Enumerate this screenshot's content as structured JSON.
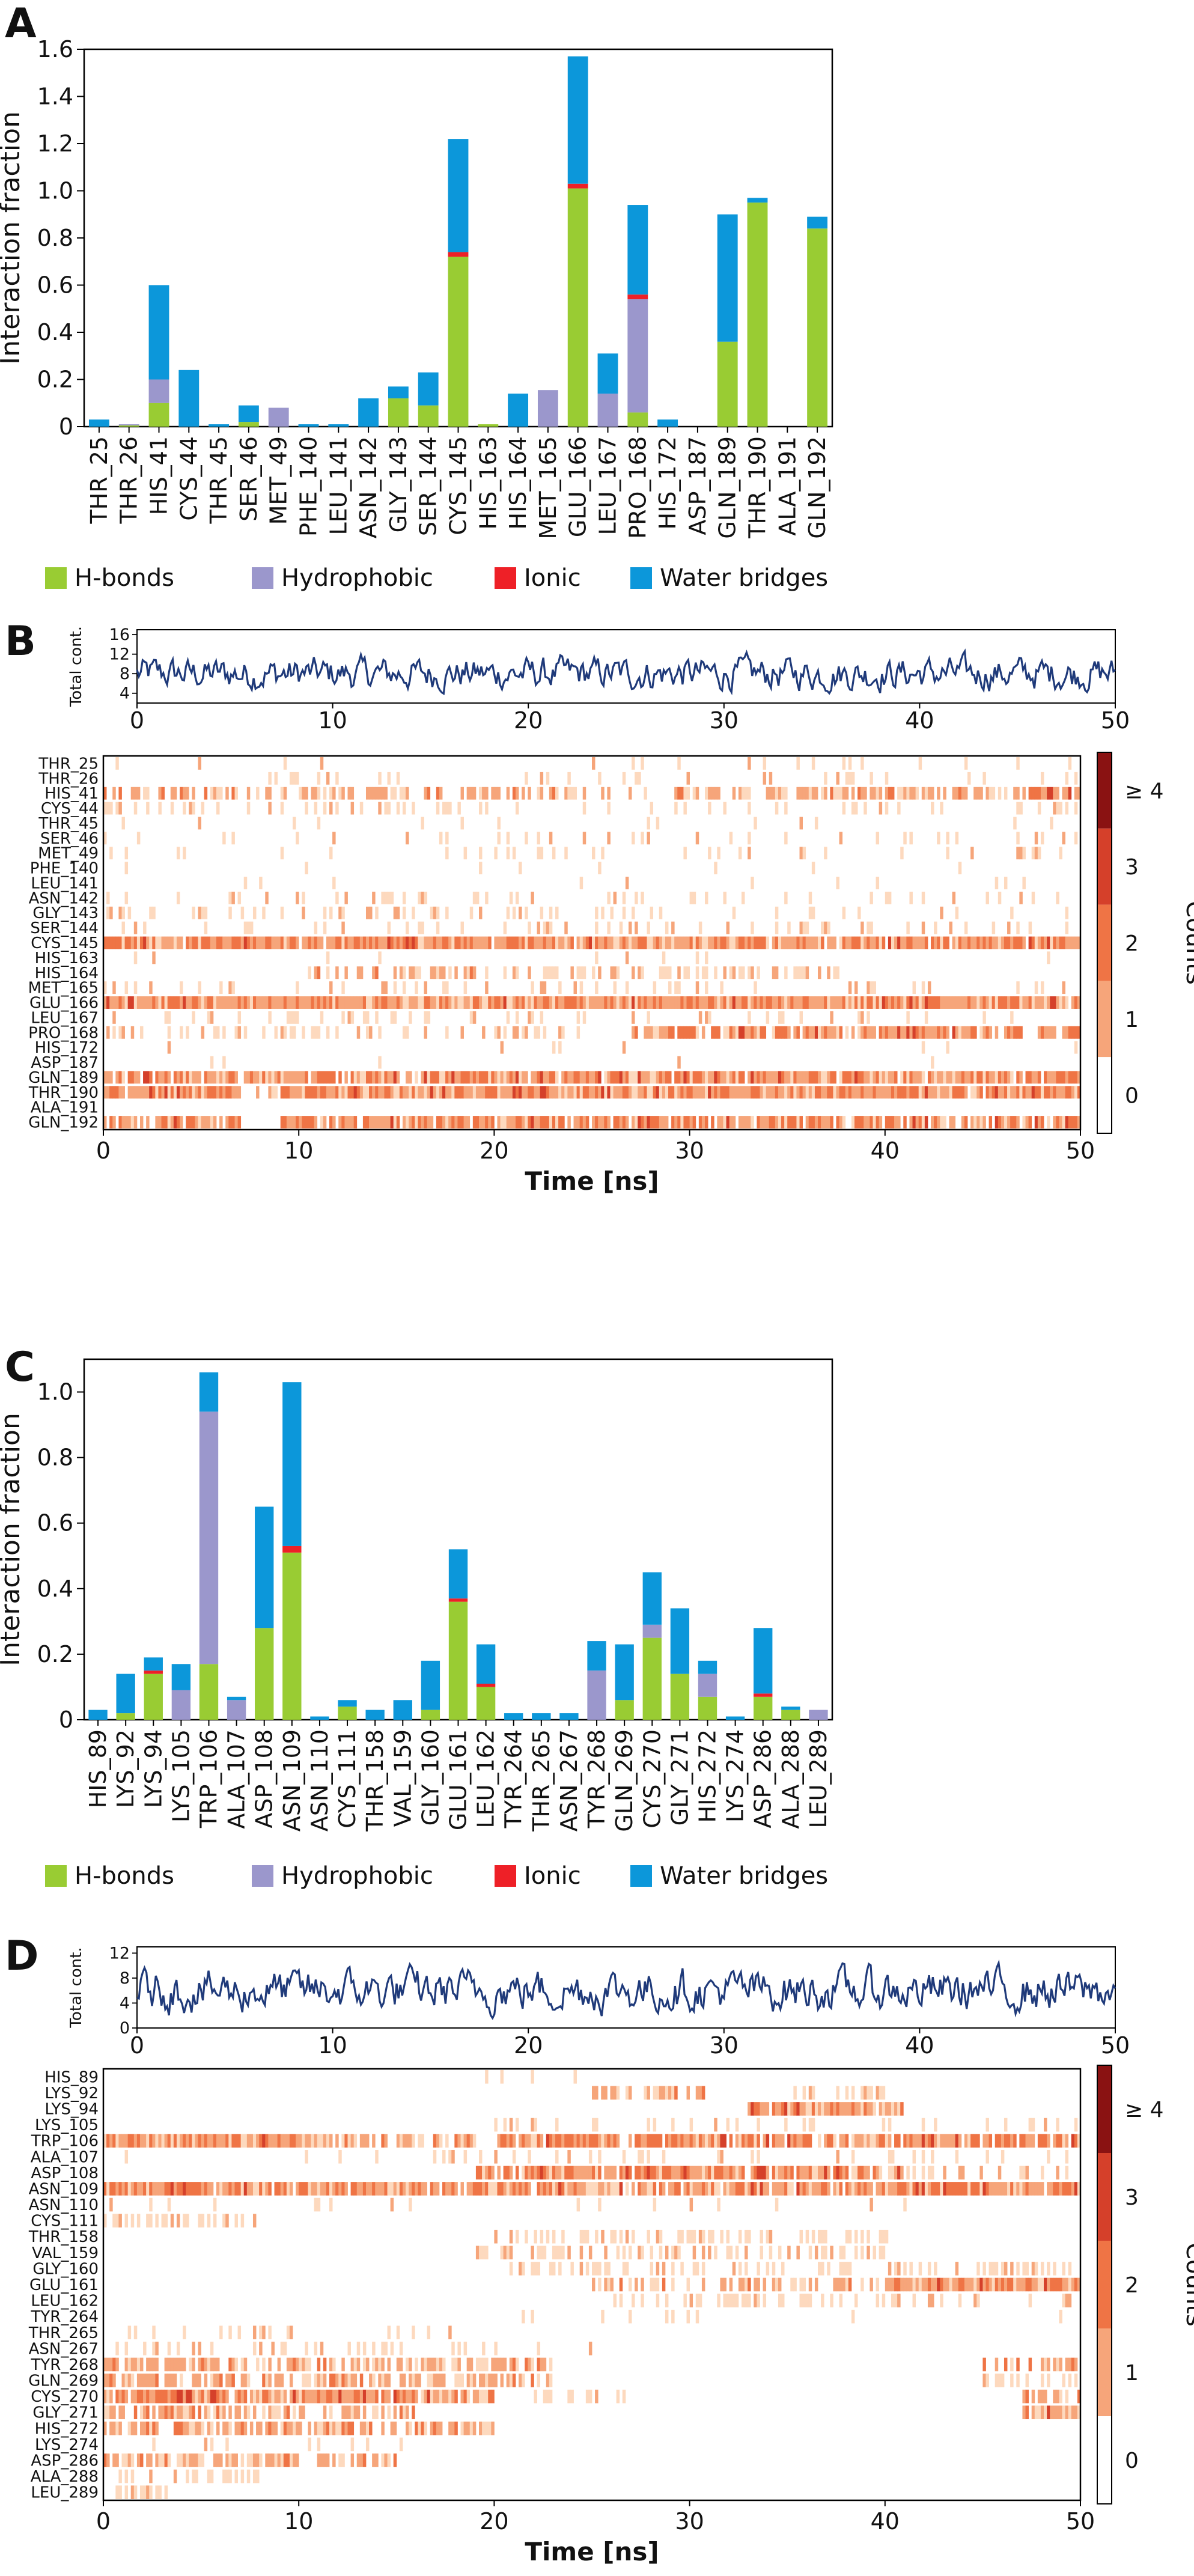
{
  "colors": {
    "hbond": "#99CC33",
    "hydrophobic": "#9B97CC",
    "ionic": "#EE2027",
    "water": "#0C97DA",
    "trace": "#1F3A7A",
    "heat": [
      "#FFFFFF",
      "#FDD9BE",
      "#F6A57A",
      "#EF7445",
      "#D5402A",
      "#8A1212"
    ]
  },
  "panels": {
    "A": {
      "letter": "A"
    },
    "B": {
      "letter": "B"
    },
    "C": {
      "letter": "C"
    },
    "D": {
      "letter": "D"
    }
  },
  "legend": {
    "hbond": "H-bonds",
    "hydrophobic": "Hydrophobic",
    "ionic": "Ionic",
    "water": "Water bridges"
  },
  "chart_data": [
    {
      "panel": "A",
      "type": "bar",
      "stacked": true,
      "ylabel": "Interaction fraction",
      "ylim": [
        0,
        1.6
      ],
      "yticks": [
        "0",
        "0.2",
        "0.4",
        "0.6",
        "0.8",
        "1.0",
        "1.2",
        "1.4",
        "1.6"
      ],
      "categories": [
        "THR_25",
        "THR_26",
        "HIS_41",
        "CYS_44",
        "THR_45",
        "SER_46",
        "MET_49",
        "PHE_140",
        "LEU_141",
        "ASN_142",
        "GLY_143",
        "SER_144",
        "CYS_145",
        "HIS_163",
        "HIS_164",
        "MET_165",
        "GLU_166",
        "LEU_167",
        "PRO_168",
        "HIS_172",
        "ASP_187",
        "GLN_189",
        "THR_190",
        "ALA_191",
        "GLN_192"
      ],
      "series": [
        {
          "name": "H-bonds",
          "values": [
            0,
            0.005,
            0.1,
            0,
            0,
            0.02,
            0,
            0,
            0,
            0,
            0.12,
            0.09,
            0.72,
            0.01,
            0,
            0,
            1.01,
            0,
            0.06,
            0,
            0,
            0.36,
            0.95,
            0,
            0.84
          ]
        },
        {
          "name": "Hydrophobic",
          "values": [
            0,
            0.005,
            0.1,
            0,
            0,
            0,
            0.08,
            0,
            0,
            0,
            0,
            0,
            0,
            0,
            0,
            0.155,
            0,
            0.14,
            0.48,
            0,
            0,
            0,
            0,
            0,
            0
          ]
        },
        {
          "name": "Ionic",
          "values": [
            0,
            0,
            0,
            0,
            0,
            0,
            0,
            0,
            0,
            0,
            0,
            0,
            0.02,
            0,
            0,
            0,
            0.02,
            0,
            0.02,
            0,
            0,
            0,
            0,
            0,
            0
          ]
        },
        {
          "name": "Water bridges",
          "values": [
            0.03,
            0,
            0.4,
            0.24,
            0.01,
            0.07,
            0,
            0.01,
            0.01,
            0.12,
            0.05,
            0.14,
            0.48,
            0,
            0.14,
            0,
            0.54,
            0.17,
            0.38,
            0.03,
            0,
            0.54,
            0.02,
            0,
            0.05
          ]
        }
      ]
    },
    {
      "panel": "B",
      "type": "heatmap",
      "trace": {
        "ylabel": "Total cont.",
        "yticks": [
          "4",
          "8",
          "12",
          "16"
        ],
        "ylim": [
          2,
          17
        ],
        "mean": 8,
        "amp": 2.6
      },
      "xlabel": "Time [ns]",
      "xlim": [
        0,
        50
      ],
      "xticks": [
        "0",
        "10",
        "20",
        "30",
        "40",
        "50"
      ],
      "colorbar_label": "Counts",
      "colorbar_ticks": [
        "0",
        "1",
        "2",
        "3",
        "≥ 4"
      ],
      "rows": [
        "THR_25",
        "THR_26",
        "HIS_41",
        "CYS_44",
        "THR_45",
        "SER_46",
        "MET_49",
        "PHE_140",
        "LEU_141",
        "ASN_142",
        "GLY_143",
        "SER_144",
        "CYS_145",
        "HIS_163",
        "HIS_164",
        "MET_165",
        "GLU_166",
        "LEU_167",
        "PRO_168",
        "HIS_172",
        "ASP_187",
        "GLN_189",
        "THR_190",
        "ALA_191",
        "GLN_192"
      ],
      "occupancy": [
        [
          [
            0,
            50,
            0.05
          ]
        ],
        [
          [
            8,
            16,
            0.2
          ],
          [
            20,
            50,
            0.1
          ]
        ],
        [
          [
            0,
            28,
            0.5
          ],
          [
            29,
            48,
            0.7
          ],
          [
            47,
            50,
            0.9
          ]
        ],
        [
          [
            0,
            20,
            0.25
          ],
          [
            20,
            50,
            0.15
          ]
        ],
        [
          [
            0,
            50,
            0.04
          ]
        ],
        [
          [
            0,
            50,
            0.12
          ]
        ],
        [
          [
            0,
            50,
            0.1
          ]
        ],
        [
          [
            0,
            50,
            0.04
          ]
        ],
        [
          [
            0,
            50,
            0.05
          ]
        ],
        [
          [
            0,
            50,
            0.14
          ]
        ],
        [
          [
            0,
            28,
            0.22
          ],
          [
            28,
            50,
            0.08
          ]
        ],
        [
          [
            0,
            50,
            0.15
          ]
        ],
        [
          [
            0,
            50,
            0.98
          ]
        ],
        [
          [
            0,
            50,
            0.02
          ]
        ],
        [
          [
            10,
            20,
            0.5
          ],
          [
            20,
            38,
            0.35
          ]
        ],
        [
          [
            0,
            50,
            0.16
          ]
        ],
        [
          [
            0,
            50,
            0.99
          ]
        ],
        [
          [
            0,
            50,
            0.2
          ]
        ],
        [
          [
            0,
            10,
            0.4
          ],
          [
            10,
            26,
            0.3
          ],
          [
            27,
            50,
            0.85
          ]
        ],
        [
          [
            0,
            50,
            0.03
          ]
        ],
        [
          [
            0,
            50,
            0.01
          ]
        ],
        [
          [
            0,
            50,
            0.92
          ]
        ],
        [
          [
            0,
            7,
            0.98
          ],
          [
            7,
            9,
            0.4
          ],
          [
            9,
            50,
            0.98
          ]
        ],
        [
          [
            0,
            50,
            0.0
          ]
        ],
        [
          [
            0,
            7,
            0.85
          ],
          [
            9,
            50,
            0.85
          ]
        ]
      ]
    },
    {
      "panel": "C",
      "type": "bar",
      "stacked": true,
      "ylabel": "Interaction fraction",
      "ylim": [
        0,
        1.1
      ],
      "yticks": [
        "0",
        "0.2",
        "0.4",
        "0.6",
        "0.8",
        "1.0"
      ],
      "categories": [
        "HIS_89",
        "LYS_92",
        "LYS_94",
        "LYS_105",
        "TRP_106",
        "ALA_107",
        "ASP_108",
        "ASN_109",
        "ASN_110",
        "CYS_111",
        "THR_158",
        "VAL_159",
        "GLY_160",
        "GLU_161",
        "LEU_162",
        "TYR_264",
        "THR_265",
        "ASN_267",
        "TYR_268",
        "GLN_269",
        "CYS_270",
        "GLY_271",
        "HIS_272",
        "LYS_274",
        "ASP_286",
        "ALA_288",
        "LEU_289"
      ],
      "series": [
        {
          "name": "H-bonds",
          "values": [
            0,
            0.02,
            0.14,
            0,
            0.17,
            0,
            0.28,
            0.51,
            0,
            0.04,
            0,
            0,
            0.03,
            0.36,
            0.1,
            0,
            0,
            0,
            0,
            0.06,
            0.25,
            0.14,
            0.07,
            0,
            0.07,
            0.03,
            0
          ]
        },
        {
          "name": "Hydrophobic",
          "values": [
            0,
            0,
            0,
            0.09,
            0.77,
            0.06,
            0,
            0,
            0,
            0,
            0,
            0,
            0,
            0,
            0,
            0,
            0,
            0,
            0.15,
            0,
            0.04,
            0,
            0.07,
            0,
            0,
            0,
            0.03
          ]
        },
        {
          "name": "Ionic",
          "values": [
            0,
            0,
            0.01,
            0,
            0,
            0,
            0,
            0.02,
            0,
            0,
            0,
            0,
            0,
            0.01,
            0.01,
            0,
            0,
            0,
            0,
            0,
            0,
            0,
            0,
            0,
            0.01,
            0,
            0
          ]
        },
        {
          "name": "Water bridges",
          "values": [
            0.03,
            0.12,
            0.04,
            0.08,
            0.12,
            0.01,
            0.37,
            0.5,
            0.01,
            0.02,
            0.03,
            0.06,
            0.15,
            0.15,
            0.12,
            0.02,
            0.02,
            0.02,
            0.09,
            0.17,
            0.16,
            0.2,
            0.04,
            0.01,
            0.2,
            0.01,
            0
          ]
        }
      ]
    },
    {
      "panel": "D",
      "type": "heatmap",
      "trace": {
        "ylabel": "Total cont.",
        "yticks": [
          "0",
          "4",
          "8",
          "12"
        ],
        "ylim": [
          0,
          13
        ],
        "mean": 6,
        "amp": 2.6
      },
      "xlabel": "Time [ns]",
      "xlim": [
        0,
        50
      ],
      "xticks": [
        "0",
        "10",
        "20",
        "30",
        "40",
        "50"
      ],
      "colorbar_label": "Counts",
      "colorbar_ticks": [
        "0",
        "1",
        "2",
        "3",
        "≥ 4"
      ],
      "rows": [
        "HIS_89",
        "LYS_92",
        "LYS_94",
        "LYS_105",
        "TRP_106",
        "ALA_107",
        "ASP_108",
        "ASN_109",
        "ASN_110",
        "CYS_111",
        "THR_158",
        "VAL_159",
        "GLY_160",
        "GLU_161",
        "LEU_162",
        "TYR_264",
        "THR_265",
        "ASN_267",
        "TYR_268",
        "GLN_269",
        "CYS_270",
        "GLY_271",
        "HIS_272",
        "LYS_274",
        "ASP_286",
        "ALA_288",
        "LEU_289"
      ],
      "occupancy": [
        [
          [
            19,
            25,
            0.15
          ]
        ],
        [
          [
            25,
            31,
            0.6
          ],
          [
            35,
            40,
            0.3
          ]
        ],
        [
          [
            33,
            41,
            0.9
          ]
        ],
        [
          [
            20,
            50,
            0.15
          ]
        ],
        [
          [
            0,
            10,
            0.98
          ],
          [
            10,
            19,
            0.7
          ],
          [
            20,
            50,
            0.85
          ]
        ],
        [
          [
            0,
            50,
            0.1
          ]
        ],
        [
          [
            19,
            41,
            0.9
          ],
          [
            41,
            50,
            0.2
          ]
        ],
        [
          [
            0,
            50,
            0.92
          ]
        ],
        [
          [
            0,
            50,
            0.05
          ]
        ],
        [
          [
            0,
            8,
            0.4
          ]
        ],
        [
          [
            19,
            30,
            0.3
          ],
          [
            30,
            41,
            0.4
          ]
        ],
        [
          [
            19,
            40,
            0.4
          ]
        ],
        [
          [
            20,
            50,
            0.3
          ]
        ],
        [
          [
            25,
            40,
            0.5
          ],
          [
            40,
            50,
            0.98
          ]
        ],
        [
          [
            26,
            40,
            0.4
          ],
          [
            40,
            50,
            0.25
          ]
        ],
        [
          [
            20,
            50,
            0.06
          ]
        ],
        [
          [
            0,
            20,
            0.1
          ]
        ],
        [
          [
            0,
            20,
            0.25
          ],
          [
            20,
            25,
            0.15
          ]
        ],
        [
          [
            0,
            23,
            0.7
          ],
          [
            45,
            50,
            0.5
          ]
        ],
        [
          [
            0,
            23,
            0.6
          ],
          [
            45,
            50,
            0.3
          ]
        ],
        [
          [
            0,
            20,
            0.9
          ],
          [
            22,
            27,
            0.4
          ],
          [
            47,
            50,
            0.7
          ]
        ],
        [
          [
            0,
            16,
            0.6
          ],
          [
            47,
            50,
            0.9
          ]
        ],
        [
          [
            0,
            20,
            0.7
          ]
        ],
        [
          [
            0,
            20,
            0.1
          ]
        ],
        [
          [
            0,
            10,
            0.8
          ],
          [
            11,
            15,
            0.6
          ]
        ],
        [
          [
            0,
            8,
            0.3
          ]
        ],
        [
          [
            0,
            4,
            0.3
          ]
        ]
      ]
    }
  ]
}
